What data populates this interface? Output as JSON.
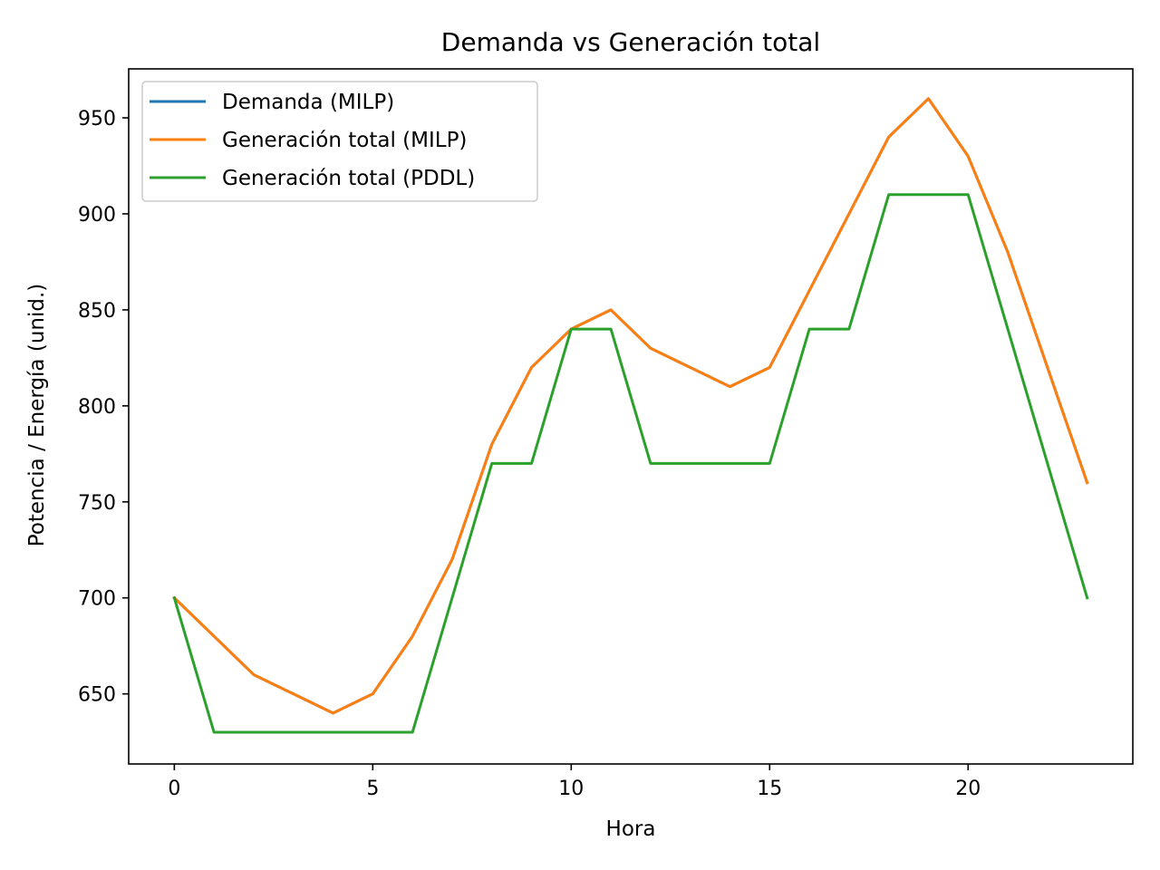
{
  "chart_data": {
    "type": "line",
    "title": "Demanda vs Generación total",
    "xlabel": "Hora",
    "ylabel": "Potencia / Energía (unid.)",
    "xlim": [
      -1.15,
      24.15
    ],
    "ylim": [
      613.5,
      975.5
    ],
    "xticks": [
      0,
      5,
      10,
      15,
      20
    ],
    "yticks": [
      650,
      700,
      750,
      800,
      850,
      900,
      950
    ],
    "grid": false,
    "legend_position": "upper-left",
    "x": [
      0,
      1,
      2,
      3,
      4,
      5,
      6,
      7,
      8,
      9,
      10,
      11,
      12,
      13,
      14,
      15,
      16,
      17,
      18,
      19,
      20,
      21,
      22,
      23
    ],
    "series": [
      {
        "name": "Demanda (MILP)",
        "color": "#1f77b4",
        "values": [
          700,
          680,
          660,
          650,
          640,
          650,
          680,
          720,
          780,
          820,
          840,
          850,
          830,
          820,
          810,
          820,
          860,
          900,
          940,
          960,
          930,
          880,
          820,
          760
        ]
      },
      {
        "name": "Generación total (MILP)",
        "color": "#ff7f0e",
        "values": [
          700,
          680,
          660,
          650,
          640,
          650,
          680,
          720,
          780,
          820,
          840,
          850,
          830,
          820,
          810,
          820,
          860,
          900,
          940,
          960,
          930,
          880,
          820,
          760
        ]
      },
      {
        "name": "Generación total (PDDL)",
        "color": "#2ca02c",
        "values": [
          700,
          630,
          630,
          630,
          630,
          630,
          630,
          700,
          770,
          770,
          840,
          840,
          770,
          770,
          770,
          770,
          840,
          840,
          910,
          910,
          910,
          840,
          770,
          700
        ]
      }
    ]
  }
}
